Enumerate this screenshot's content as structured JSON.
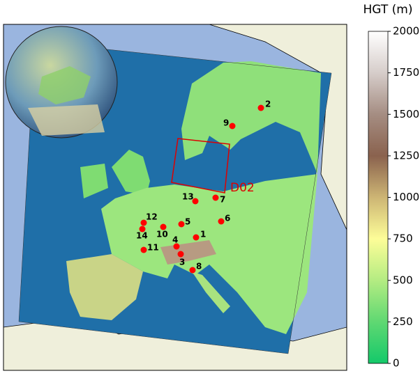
{
  "map": {
    "colorbar": {
      "title": "HGT (m)",
      "lim": [
        0,
        2000
      ],
      "ticks": [
        0,
        250,
        500,
        750,
        1000,
        1250,
        1500,
        1750,
        2000
      ]
    },
    "domain_label": "D02",
    "stations": [
      {
        "label": "1"
      },
      {
        "label": "2"
      },
      {
        "label": "3"
      },
      {
        "label": "4"
      },
      {
        "label": "5"
      },
      {
        "label": "6"
      },
      {
        "label": "7"
      },
      {
        "label": "8"
      },
      {
        "label": "9"
      },
      {
        "label": "10"
      },
      {
        "label": "11"
      },
      {
        "label": "12"
      },
      {
        "label": "13"
      },
      {
        "label": "14"
      }
    ]
  }
}
